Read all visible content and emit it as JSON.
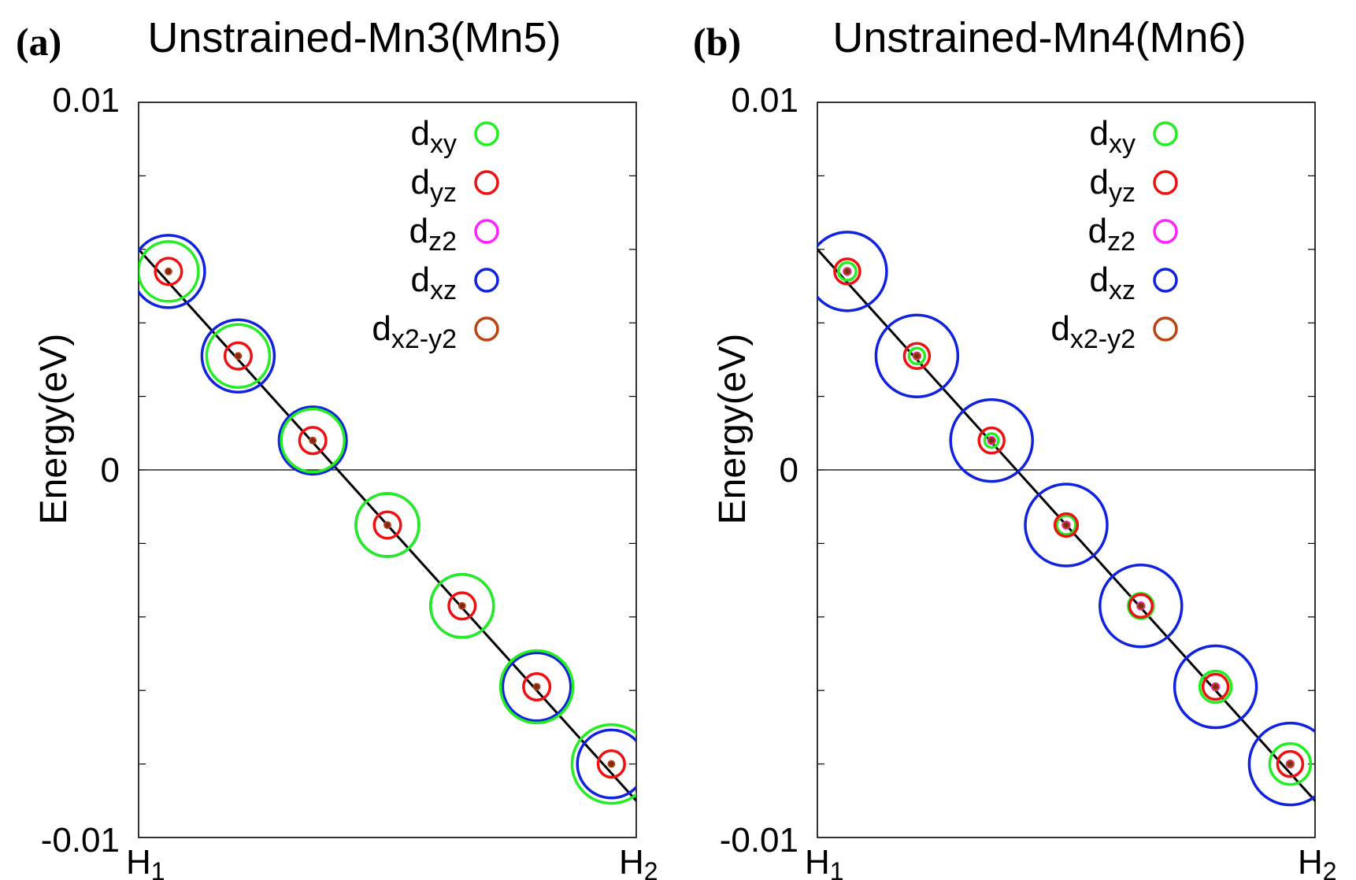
{
  "chart_data": [
    {
      "type": "scatter",
      "panel_label": "(a)",
      "title": "Unstrained-Mn3(Mn5)",
      "ylabel": "Energy(eV)",
      "xlabel": "",
      "ylim": [
        -0.01,
        0.01
      ],
      "yticks": [
        "0.01",
        "0",
        "-0.01"
      ],
      "xticks": [
        "H1",
        "H2"
      ],
      "line": {
        "x": [
          -0.02,
          1.02
        ],
        "y": [
          0.0063,
          -0.0093
        ],
        "color": "#000000"
      },
      "legend": [
        {
          "base": "d",
          "sub": "xy",
          "color": "#22ee22"
        },
        {
          "base": "d",
          "sub": "yz",
          "color": "#ee1111"
        },
        {
          "base": "d",
          "sub": "z2",
          "color": "#ff22ff"
        },
        {
          "base": "d",
          "sub": "xz",
          "color": "#1122dd"
        },
        {
          "base": "d",
          "sub": "x2-y2",
          "color": "#bb4411"
        }
      ],
      "points": [
        {
          "x": 0.06,
          "y": 0.0054,
          "weights": {
            "xy": 0.95,
            "yz": 0.42,
            "z2": 0.02,
            "xz": 1.15,
            "x2-y2": 0.08
          }
        },
        {
          "x": 0.2,
          "y": 0.0031,
          "weights": {
            "xy": 1.0,
            "yz": 0.42,
            "z2": 0.02,
            "xz": 1.15,
            "x2-y2": 0.08
          }
        },
        {
          "x": 0.35,
          "y": 0.0008,
          "weights": {
            "xy": 1.0,
            "yz": 0.42,
            "z2": 0.02,
            "xz": 1.07,
            "x2-y2": 0.08
          }
        },
        {
          "x": 0.5,
          "y": -0.0015,
          "weights": {
            "xy": 1.0,
            "yz": 0.42,
            "z2": 0.02,
            "xz": 1.0,
            "x2-y2": 0.08
          }
        },
        {
          "x": 0.65,
          "y": -0.0037,
          "weights": {
            "xy": 1.0,
            "yz": 0.42,
            "z2": 0.02,
            "xz": 1.0,
            "x2-y2": 0.08
          }
        },
        {
          "x": 0.8,
          "y": -0.0059,
          "weights": {
            "xy": 1.15,
            "yz": 0.42,
            "z2": 0.02,
            "xz": 1.08,
            "x2-y2": 0.08
          }
        },
        {
          "x": 0.95,
          "y": -0.008,
          "weights": {
            "xy": 1.25,
            "yz": 0.42,
            "z2": 0.02,
            "xz": 1.08,
            "x2-y2": 0.08
          }
        }
      ]
    },
    {
      "type": "scatter",
      "panel_label": "(b)",
      "title": "Unstrained-Mn4(Mn6)",
      "ylabel": "Energy(eV)",
      "xlabel": "",
      "ylim": [
        -0.01,
        0.01
      ],
      "yticks": [
        "0.01",
        "0",
        "-0.01"
      ],
      "xticks": [
        "H1",
        "H2"
      ],
      "line": {
        "x": [
          -0.02,
          1.02
        ],
        "y": [
          0.0063,
          -0.0093
        ],
        "color": "#000000"
      },
      "legend": [
        {
          "base": "d",
          "sub": "xy",
          "color": "#22ee22"
        },
        {
          "base": "d",
          "sub": "yz",
          "color": "#ee1111"
        },
        {
          "base": "d",
          "sub": "z2",
          "color": "#ff22ff"
        },
        {
          "base": "d",
          "sub": "xz",
          "color": "#1122dd"
        },
        {
          "base": "d",
          "sub": "x2-y2",
          "color": "#bb4411"
        }
      ],
      "points": [
        {
          "x": 0.06,
          "y": 0.0054,
          "weights": {
            "xy": 0.28,
            "yz": 0.4,
            "z2": 0.1,
            "xz": 1.25,
            "x2-y2": 0.08
          }
        },
        {
          "x": 0.2,
          "y": 0.0031,
          "weights": {
            "xy": 0.25,
            "yz": 0.4,
            "z2": 0.1,
            "xz": 1.3,
            "x2-y2": 0.08
          }
        },
        {
          "x": 0.35,
          "y": 0.0008,
          "weights": {
            "xy": 0.22,
            "yz": 0.4,
            "z2": 0.1,
            "xz": 1.3,
            "x2-y2": 0.08
          }
        },
        {
          "x": 0.5,
          "y": -0.0015,
          "weights": {
            "xy": 0.3,
            "yz": 0.36,
            "z2": 0.1,
            "xz": 1.3,
            "x2-y2": 0.08
          }
        },
        {
          "x": 0.65,
          "y": -0.0037,
          "weights": {
            "xy": 0.4,
            "yz": 0.36,
            "z2": 0.1,
            "xz": 1.3,
            "x2-y2": 0.08
          }
        },
        {
          "x": 0.8,
          "y": -0.0059,
          "weights": {
            "xy": 0.5,
            "yz": 0.4,
            "z2": 0.1,
            "xz": 1.3,
            "x2-y2": 0.08
          }
        },
        {
          "x": 0.95,
          "y": -0.008,
          "weights": {
            "xy": 0.65,
            "yz": 0.4,
            "z2": 0.1,
            "xz": 1.3,
            "x2-y2": 0.08
          }
        }
      ]
    }
  ]
}
